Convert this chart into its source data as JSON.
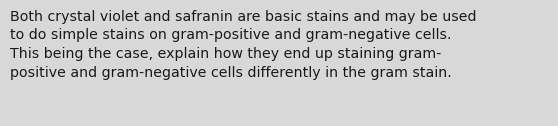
{
  "text": "Both crystal violet and safranin are basic stains and may be used\nto do simple stains on gram-positive and gram-negative cells.\nThis being the case, explain how they end up staining gram-\npositive and gram-negative cells differently in the gram stain.",
  "background_color": "#d8d8d8",
  "content_color": "#f0f0f0",
  "border_color": "#888888",
  "text_color": "#1a1a1a",
  "font_size": 10.2,
  "fig_width": 5.58,
  "fig_height": 1.26,
  "dpi": 100
}
